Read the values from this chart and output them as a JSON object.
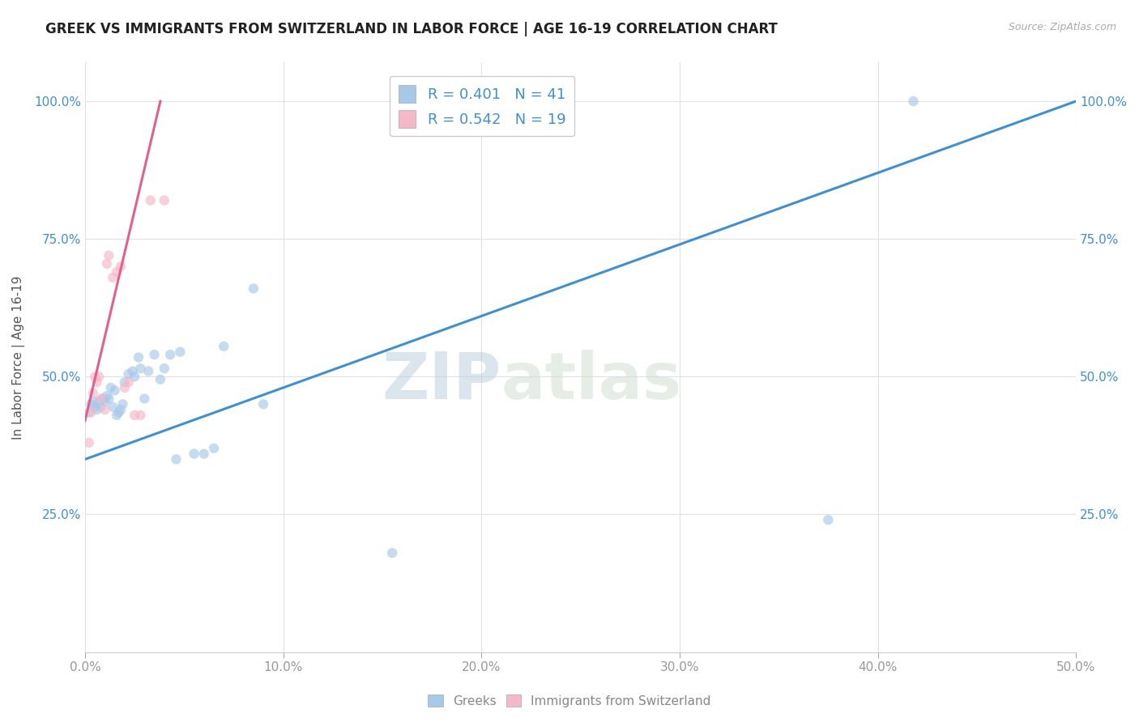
{
  "title": "GREEK VS IMMIGRANTS FROM SWITZERLAND IN LABOR FORCE | AGE 16-19 CORRELATION CHART",
  "source": "Source: ZipAtlas.com",
  "ylabel": "In Labor Force | Age 16-19",
  "xlim": [
    0,
    0.5
  ],
  "ylim": [
    0,
    1.07
  ],
  "xtick_labels": [
    "0.0%",
    "",
    "",
    "",
    "",
    "",
    "",
    "",
    "",
    "",
    "10.0%",
    "",
    "",
    "",
    "",
    "",
    "",
    "",
    "",
    "",
    "20.0%",
    "",
    "",
    "",
    "",
    "",
    "",
    "",
    "",
    "",
    "30.0%",
    "",
    "",
    "",
    "",
    "",
    "",
    "",
    "",
    "",
    "40.0%",
    "",
    "",
    "",
    "",
    "",
    "",
    "",
    "",
    "",
    "50.0%"
  ],
  "xtick_values": [
    0.0,
    0.01,
    0.02,
    0.03,
    0.04,
    0.05,
    0.06,
    0.07,
    0.08,
    0.09,
    0.1,
    0.11,
    0.12,
    0.13,
    0.14,
    0.15,
    0.16,
    0.17,
    0.18,
    0.19,
    0.2,
    0.21,
    0.22,
    0.23,
    0.24,
    0.25,
    0.26,
    0.27,
    0.28,
    0.29,
    0.3,
    0.31,
    0.32,
    0.33,
    0.34,
    0.35,
    0.36,
    0.37,
    0.38,
    0.39,
    0.4,
    0.41,
    0.42,
    0.43,
    0.44,
    0.45,
    0.46,
    0.47,
    0.48,
    0.49,
    0.5
  ],
  "ytick_labels": [
    "25.0%",
    "50.0%",
    "75.0%",
    "100.0%"
  ],
  "ytick_values": [
    0.25,
    0.5,
    0.75,
    1.0
  ],
  "major_xticks": [
    0.0,
    0.1,
    0.2,
    0.3,
    0.4,
    0.5
  ],
  "major_xtick_labels": [
    "0.0%",
    "10.0%",
    "20.0%",
    "30.0%",
    "40.0%",
    "50.0%"
  ],
  "watermark_zip": "ZIP",
  "watermark_atlas": "atlas",
  "blue_color": "#a8c8e8",
  "pink_color": "#f4b8c8",
  "blue_line_color": "#4090d0",
  "pink_line_color": "#e06090",
  "legend_blue_text": "R = 0.401   N = 41",
  "legend_pink_text": "R = 0.542   N = 19",
  "blue_scatter_x": [
    0.002,
    0.003,
    0.004,
    0.005,
    0.006,
    0.007,
    0.008,
    0.009,
    0.01,
    0.011,
    0.012,
    0.013,
    0.014,
    0.015,
    0.016,
    0.017,
    0.018,
    0.019,
    0.02,
    0.022,
    0.024,
    0.025,
    0.027,
    0.028,
    0.03,
    0.032,
    0.035,
    0.038,
    0.04,
    0.043,
    0.046,
    0.048,
    0.055,
    0.06,
    0.065,
    0.07,
    0.085,
    0.09,
    0.155,
    0.375,
    0.418
  ],
  "blue_scatter_y": [
    0.435,
    0.45,
    0.455,
    0.445,
    0.44,
    0.455,
    0.445,
    0.46,
    0.455,
    0.465,
    0.46,
    0.48,
    0.445,
    0.475,
    0.43,
    0.435,
    0.44,
    0.45,
    0.49,
    0.505,
    0.51,
    0.5,
    0.535,
    0.515,
    0.46,
    0.51,
    0.54,
    0.495,
    0.515,
    0.54,
    0.35,
    0.545,
    0.36,
    0.36,
    0.37,
    0.555,
    0.66,
    0.45,
    0.18,
    0.24,
    1.0
  ],
  "pink_scatter_x": [
    0.002,
    0.003,
    0.004,
    0.005,
    0.006,
    0.007,
    0.008,
    0.01,
    0.011,
    0.012,
    0.014,
    0.016,
    0.018,
    0.02,
    0.022,
    0.025,
    0.028,
    0.033,
    0.04
  ],
  "pink_scatter_y": [
    0.38,
    0.435,
    0.47,
    0.5,
    0.49,
    0.5,
    0.46,
    0.44,
    0.705,
    0.72,
    0.68,
    0.69,
    0.7,
    0.48,
    0.49,
    0.43,
    0.43,
    0.82,
    0.82
  ],
  "blue_line_x0": 0.0,
  "blue_line_x1": 0.5,
  "blue_line_y0": 0.35,
  "blue_line_y1": 1.0,
  "pink_line_x0": 0.0,
  "pink_line_x1": 0.038,
  "pink_line_y0": 0.42,
  "pink_line_y1": 1.0,
  "background_color": "#ffffff",
  "grid_color": "#e0e0e8",
  "title_fontsize": 12,
  "axis_label_fontsize": 11,
  "tick_fontsize": 11,
  "scatter_size": 80,
  "scatter_alpha": 0.65,
  "line_width": 2.2
}
